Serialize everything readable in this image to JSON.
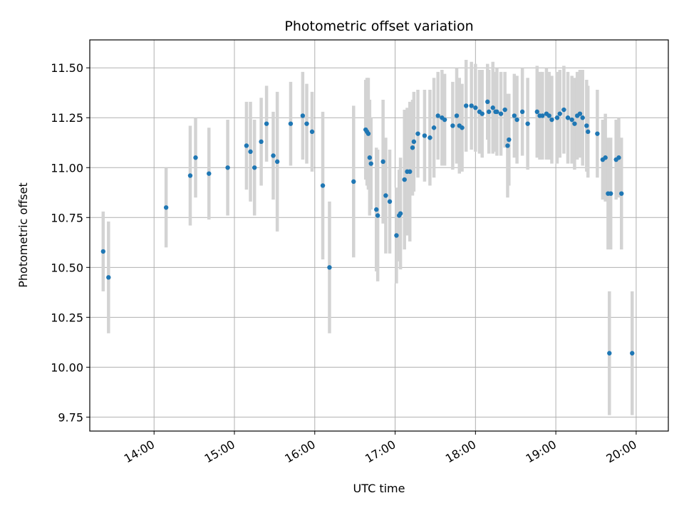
{
  "chart_data": {
    "type": "scatter",
    "title": "Photometric offset variation",
    "xlabel": "UTC time",
    "ylabel": "Photometric offset",
    "x_ticks": [
      "14:00",
      "15:00",
      "16:00",
      "17:00",
      "18:00",
      "19:00",
      "20:00"
    ],
    "y_ticks": [
      "9.75",
      "10.00",
      "10.25",
      "10.50",
      "10.75",
      "11.00",
      "11.25",
      "11.50"
    ],
    "xlim": [
      "13:12",
      "20:24"
    ],
    "ylim": [
      9.68,
      11.64
    ],
    "grid": true,
    "colors": {
      "points": "#1f77b4",
      "errorbars": "#d3d3d3",
      "grid": "#b0b0b0"
    },
    "series": [
      {
        "x": [
          "13:22",
          "13:26",
          "14:09",
          "14:27",
          "14:31",
          "14:41",
          "14:55",
          "15:09",
          "15:12",
          "15:15",
          "15:20",
          "15:24",
          "15:29",
          "15:32",
          "15:42",
          "15:51",
          "15:54",
          "15:58",
          "16:06",
          "16:11",
          "16:29",
          "16:38",
          "16:39",
          "16:40",
          "16:41",
          "16:42",
          "16:46",
          "16:47",
          "16:51",
          "16:53",
          "16:56",
          "17:01",
          "17:03",
          "17:04",
          "17:07",
          "17:09",
          "17:11",
          "17:13",
          "17:14",
          "17:17",
          "17:22",
          "17:26",
          "17:29",
          "17:32",
          "17:35",
          "17:37",
          "17:43",
          "17:46",
          "17:48",
          "17:50",
          "17:53",
          "17:57",
          "18:00",
          "18:03",
          "18:05",
          "18:09",
          "18:10",
          "18:13",
          "18:15",
          "18:16",
          "18:19",
          "18:22",
          "18:24",
          "18:25",
          "18:29",
          "18:31",
          "18:35",
          "18:39",
          "18:46",
          "18:48",
          "18:50",
          "18:53",
          "18:55",
          "18:57",
          "19:01",
          "19:03",
          "19:06",
          "19:09",
          "19:12",
          "19:14",
          "19:16",
          "19:18",
          "19:20",
          "19:23",
          "19:24",
          "19:31",
          "19:35",
          "19:37",
          "19:39",
          "19:40",
          "19:41",
          "19:45",
          "19:47",
          "19:49",
          "19:57"
        ],
        "y": [
          10.58,
          10.45,
          10.8,
          10.96,
          11.05,
          10.97,
          11.0,
          11.11,
          11.08,
          11.0,
          11.13,
          11.22,
          11.06,
          11.03,
          11.22,
          11.26,
          11.22,
          11.18,
          10.91,
          10.5,
          10.93,
          11.19,
          11.18,
          11.17,
          11.05,
          11.02,
          10.79,
          10.76,
          11.03,
          10.86,
          10.83,
          10.66,
          10.76,
          10.77,
          10.94,
          10.98,
          10.98,
          11.1,
          11.13,
          11.17,
          11.16,
          11.15,
          11.2,
          11.26,
          11.25,
          11.24,
          11.21,
          11.26,
          11.21,
          11.2,
          11.31,
          11.31,
          11.3,
          11.28,
          11.27,
          11.33,
          11.28,
          11.3,
          11.28,
          11.28,
          11.27,
          11.29,
          11.11,
          11.14,
          11.26,
          11.24,
          11.28,
          11.22,
          11.28,
          11.26,
          11.26,
          11.27,
          11.26,
          11.24,
          11.25,
          11.27,
          11.29,
          11.25,
          11.24,
          11.22,
          11.26,
          11.27,
          11.25,
          11.21,
          11.18,
          11.17,
          11.04,
          11.05,
          10.87,
          10.07,
          10.87,
          11.04,
          11.05,
          10.87,
          10.07
        ],
        "err": [
          0.2,
          0.28,
          0.2,
          0.25,
          0.2,
          0.23,
          0.24,
          0.22,
          0.25,
          0.24,
          0.22,
          0.19,
          0.22,
          0.35,
          0.21,
          0.22,
          0.2,
          0.2,
          0.37,
          0.33,
          0.38,
          0.25,
          0.27,
          0.28,
          0.29,
          0.23,
          0.31,
          0.33,
          0.31,
          0.29,
          0.26,
          0.24,
          0.23,
          0.28,
          0.35,
          0.32,
          0.35,
          0.24,
          0.25,
          0.22,
          0.23,
          0.24,
          0.25,
          0.22,
          0.24,
          0.23,
          0.22,
          0.24,
          0.24,
          0.22,
          0.23,
          0.22,
          0.22,
          0.21,
          0.22,
          0.19,
          0.21,
          0.23,
          0.2,
          0.22,
          0.21,
          0.19,
          0.26,
          0.23,
          0.21,
          0.22,
          0.22,
          0.23,
          0.23,
          0.22,
          0.22,
          0.23,
          0.22,
          0.22,
          0.23,
          0.22,
          0.22,
          0.23,
          0.22,
          0.23,
          0.22,
          0.22,
          0.24,
          0.23,
          0.23,
          0.22,
          0.2,
          0.22,
          0.28,
          0.31,
          0.28,
          0.2,
          0.2,
          0.28,
          0.31
        ]
      }
    ]
  }
}
